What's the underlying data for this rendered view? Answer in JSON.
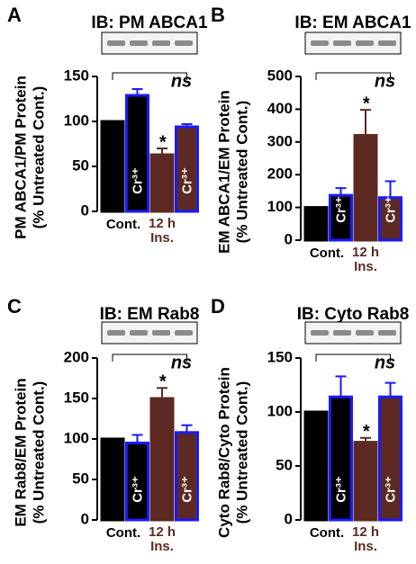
{
  "chart_data": [
    {
      "type": "bar",
      "panel": "A",
      "title": "IB: PM ABCA1",
      "y_label": [
        "PM ABCA1/PM Protein",
        "(% Untreated Cont.)"
      ],
      "categories": [
        "Cont.",
        null,
        "12 h Ins.",
        null
      ],
      "bar_labels": [
        null,
        "Cr³⁺",
        null,
        "Cr³⁺"
      ],
      "values": [
        100,
        129,
        63,
        94
      ],
      "errors": [
        null,
        7,
        7,
        3
      ],
      "colors": [
        "#000000",
        "#000000",
        "#5c2a22",
        "#5c2a22"
      ],
      "edge_colors": [
        "#000000",
        "#1a1aff",
        "#5c2a22",
        "#1a1aff"
      ],
      "ylim": [
        0,
        150
      ],
      "yticks": [
        0,
        50,
        100,
        150
      ],
      "significance": "*",
      "bracket_label": "ns"
    },
    {
      "type": "bar",
      "panel": "B",
      "title": "IB: EM ABCA1",
      "y_label": [
        "EM ABCA1/EM Protein",
        "(% Untreated Cont.)"
      ],
      "categories": [
        "Cont.",
        null,
        "12 h Ins.",
        null
      ],
      "bar_labels": [
        null,
        "Cr³⁺",
        null,
        "Cr³⁺"
      ],
      "values": [
        100,
        137,
        320,
        130
      ],
      "errors": [
        null,
        22,
        78,
        50
      ],
      "colors": [
        "#000000",
        "#000000",
        "#5c2a22",
        "#5c2a22"
      ],
      "edge_colors": [
        "#000000",
        "#1a1aff",
        "#5c2a22",
        "#1a1aff"
      ],
      "ylim": [
        0,
        500
      ],
      "yticks": [
        0,
        100,
        200,
        300,
        400,
        500
      ],
      "significance": "*",
      "bracket_label": "ns"
    },
    {
      "type": "bar",
      "panel": "C",
      "title": "IB: EM Rab8",
      "y_label": [
        "EM Rab8/EM Protein",
        "(% Untreated Cont.)"
      ],
      "categories": [
        "Cont.",
        null,
        "12 h Ins.",
        null
      ],
      "bar_labels": [
        null,
        "Cr³⁺",
        null,
        "Cr³⁺"
      ],
      "values": [
        100,
        95,
        150,
        108
      ],
      "errors": [
        null,
        10,
        13,
        9
      ],
      "colors": [
        "#000000",
        "#000000",
        "#5c2a22",
        "#5c2a22"
      ],
      "edge_colors": [
        "#000000",
        "#1a1aff",
        "#5c2a22",
        "#1a1aff"
      ],
      "ylim": [
        0,
        200
      ],
      "yticks": [
        0,
        50,
        100,
        150,
        200
      ],
      "significance": "*",
      "bracket_label": "ns"
    },
    {
      "type": "bar",
      "panel": "D",
      "title": "IB: Cyto Rab8",
      "y_label": [
        "Cyto Rab8/Cyto Protein",
        "(% Untreated Cont.)"
      ],
      "categories": [
        "Cont.",
        null,
        "12 h Ins.",
        null
      ],
      "bar_labels": [
        null,
        "Cr³⁺",
        null,
        "Cr³⁺"
      ],
      "values": [
        100,
        114,
        72,
        114
      ],
      "errors": [
        null,
        19,
        4,
        13
      ],
      "colors": [
        "#000000",
        "#000000",
        "#5c2a22",
        "#5c2a22"
      ],
      "edge_colors": [
        "#000000",
        "#1a1aff",
        "#5c2a22",
        "#1a1aff"
      ],
      "ylim": [
        0,
        150
      ],
      "yticks": [
        0,
        50,
        100,
        150
      ],
      "significance": "*",
      "bracket_label": "ns"
    }
  ]
}
